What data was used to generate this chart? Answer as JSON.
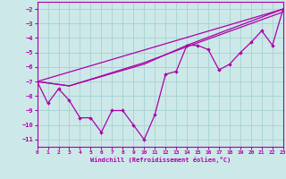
{
  "xlabel": "Windchill (Refroidissement éolien,°C)",
  "bg_color": "#cde8e8",
  "grid_color": "#aad4d4",
  "line_color": "#aa00aa",
  "xlim": [
    0,
    23
  ],
  "ylim": [
    -11.5,
    -1.5
  ],
  "yticks": [
    -11,
    -10,
    -9,
    -8,
    -7,
    -6,
    -5,
    -4,
    -3,
    -2
  ],
  "xticks": [
    0,
    1,
    2,
    3,
    4,
    5,
    6,
    7,
    8,
    9,
    10,
    11,
    12,
    13,
    14,
    15,
    16,
    17,
    18,
    19,
    20,
    21,
    22,
    23
  ],
  "main_x": [
    0,
    1,
    2,
    3,
    4,
    5,
    6,
    7,
    8,
    9,
    10,
    11,
    12,
    13,
    14,
    15,
    16,
    17,
    18,
    19,
    20,
    21,
    22,
    23
  ],
  "main_y": [
    -7.0,
    -8.5,
    -7.5,
    -8.3,
    -9.5,
    -9.5,
    -10.5,
    -9.0,
    -9.0,
    -10.0,
    -11.0,
    -9.3,
    -6.5,
    -6.3,
    -4.5,
    -4.5,
    -4.8,
    -6.2,
    -5.8,
    -5.0,
    -4.3,
    -3.5,
    -4.5,
    -2.0
  ],
  "trend1_x": [
    0,
    23
  ],
  "trend1_y": [
    -7.0,
    -2.0
  ],
  "trend2_x": [
    0,
    3,
    10,
    14,
    23
  ],
  "trend2_y": [
    -7.0,
    -7.3,
    -5.8,
    -4.5,
    -2.0
  ],
  "trend3_x": [
    0,
    3,
    10,
    14,
    23
  ],
  "trend3_y": [
    -7.0,
    -7.3,
    -5.7,
    -4.6,
    -2.2
  ],
  "marker_x": [
    0,
    3,
    10,
    14,
    23
  ],
  "marker_y": [
    -7.0,
    -7.3,
    -5.8,
    -4.5,
    -2.0
  ]
}
